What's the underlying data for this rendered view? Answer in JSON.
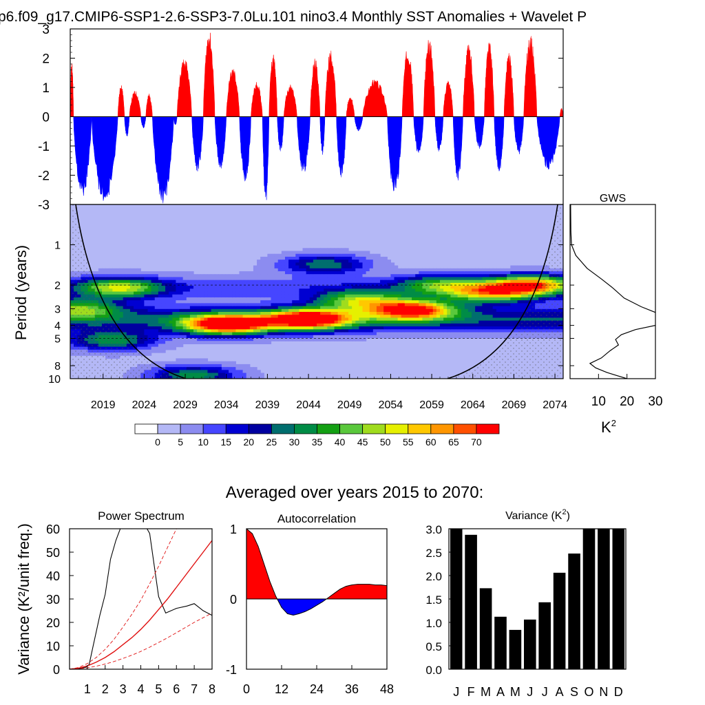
{
  "title": "p6.f09_g17.CMIP6-SSP1-2.6-SSP3-7.0Lu.101 nino3.4 Monthly SST Anomalies + Wavelet P",
  "subtitle": "Averaged over years 2015 to 2070:",
  "colors": {
    "positive": "#ff0000",
    "negative": "#0000ff",
    "coi": "#000000",
    "bars": "#000000"
  },
  "chart_data": [
    {
      "type": "bar",
      "name": "timeseries",
      "ylim": [
        -3,
        3
      ],
      "y_ticks": [
        -3,
        -2,
        -1,
        0,
        1,
        2,
        3
      ],
      "x_range": [
        2015,
        2075
      ],
      "events": [
        {
          "start": 2015.0,
          "end": 2015.4,
          "peak": 1.9
        },
        {
          "start": 2015.4,
          "end": 2017.6,
          "peak": -2.8
        },
        {
          "start": 2017.6,
          "end": 2020.8,
          "peak": -3.0
        },
        {
          "start": 2020.8,
          "end": 2021.6,
          "peak": 1.1
        },
        {
          "start": 2021.6,
          "end": 2022.2,
          "peak": -0.7
        },
        {
          "start": 2022.2,
          "end": 2023.6,
          "peak": 0.9
        },
        {
          "start": 2023.6,
          "end": 2024.2,
          "peak": -0.4
        },
        {
          "start": 2024.2,
          "end": 2025.0,
          "peak": 0.8
        },
        {
          "start": 2025.0,
          "end": 2027.6,
          "peak": -3.0
        },
        {
          "start": 2027.6,
          "end": 2028.0,
          "peak": -0.3
        },
        {
          "start": 2028.0,
          "end": 2029.8,
          "peak": 2.0
        },
        {
          "start": 2029.8,
          "end": 2031.2,
          "peak": -1.9
        },
        {
          "start": 2031.2,
          "end": 2032.6,
          "peak": 3.0
        },
        {
          "start": 2032.6,
          "end": 2034.0,
          "peak": -1.8
        },
        {
          "start": 2034.0,
          "end": 2035.6,
          "peak": 1.7
        },
        {
          "start": 2035.6,
          "end": 2037.0,
          "peak": -2.3
        },
        {
          "start": 2037.0,
          "end": 2038.4,
          "peak": 1.2
        },
        {
          "start": 2038.4,
          "end": 2039.2,
          "peak": -3.0
        },
        {
          "start": 2039.2,
          "end": 2040.2,
          "peak": 2.2
        },
        {
          "start": 2040.2,
          "end": 2041.0,
          "peak": -1.2
        },
        {
          "start": 2041.0,
          "end": 2042.6,
          "peak": 1.1
        },
        {
          "start": 2042.6,
          "end": 2044.2,
          "peak": -2.0
        },
        {
          "start": 2044.2,
          "end": 2045.4,
          "peak": 2.0
        },
        {
          "start": 2045.4,
          "end": 2046.0,
          "peak": -1.3
        },
        {
          "start": 2046.0,
          "end": 2047.4,
          "peak": 2.3
        },
        {
          "start": 2047.4,
          "end": 2048.6,
          "peak": -2.1
        },
        {
          "start": 2048.6,
          "end": 2049.6,
          "peak": 0.7
        },
        {
          "start": 2049.6,
          "end": 2050.6,
          "peak": -0.5
        },
        {
          "start": 2050.6,
          "end": 2053.6,
          "peak": 1.3
        },
        {
          "start": 2053.6,
          "end": 2055.4,
          "peak": -2.7
        },
        {
          "start": 2055.4,
          "end": 2056.8,
          "peak": 2.4
        },
        {
          "start": 2056.8,
          "end": 2058.0,
          "peak": -1.3
        },
        {
          "start": 2058.0,
          "end": 2059.4,
          "peak": 2.7
        },
        {
          "start": 2059.4,
          "end": 2060.4,
          "peak": -1.2
        },
        {
          "start": 2060.4,
          "end": 2061.6,
          "peak": 1.3
        },
        {
          "start": 2061.6,
          "end": 2062.8,
          "peak": -2.2
        },
        {
          "start": 2062.8,
          "end": 2064.2,
          "peak": 2.5
        },
        {
          "start": 2064.2,
          "end": 2065.4,
          "peak": -1.1
        },
        {
          "start": 2065.4,
          "end": 2066.6,
          "peak": 2.6
        },
        {
          "start": 2066.6,
          "end": 2067.8,
          "peak": -1.9
        },
        {
          "start": 2067.8,
          "end": 2069.0,
          "peak": 2.2
        },
        {
          "start": 2069.0,
          "end": 2070.2,
          "peak": -1.3
        },
        {
          "start": 2070.2,
          "end": 2071.8,
          "peak": 2.8
        },
        {
          "start": 2071.8,
          "end": 2074.6,
          "peak": -1.8
        },
        {
          "start": 2074.6,
          "end": 2075.0,
          "peak": 0.3
        }
      ]
    },
    {
      "type": "heatmap",
      "name": "wavelet",
      "ylabel": "Period (years)",
      "y_ticks": [
        1,
        2,
        3,
        4,
        5,
        8,
        10
      ],
      "x_ticks": [
        2019,
        2024,
        2029,
        2034,
        2039,
        2044,
        2049,
        2054,
        2059,
        2064,
        2069,
        2074
      ],
      "period_range": [
        0.5,
        10
      ],
      "x_range": [
        2015,
        2075
      ],
      "colorbar_labels": [
        0,
        5,
        10,
        15,
        20,
        25,
        30,
        35,
        40,
        45,
        50,
        55,
        60,
        65,
        70
      ],
      "colorbar_colors": [
        "#ffffff",
        "#b4b8f6",
        "#8c8cf0",
        "#4646ff",
        "#0000d2",
        "#0000a0",
        "#006e6e",
        "#008c46",
        "#14a014",
        "#5ac83c",
        "#a0dc1e",
        "#e6f000",
        "#ffc800",
        "#ff9600",
        "#ff5000",
        "#ff0000"
      ],
      "blobs": [
        {
          "x": 2034,
          "period": 3.95,
          "power": 72
        },
        {
          "x": 2044,
          "period": 3.6,
          "power": 70
        },
        {
          "x": 2056.5,
          "period": 3.05,
          "power": 66
        },
        {
          "x": 2071,
          "period": 2.0,
          "power": 57
        },
        {
          "x": 2066,
          "period": 2.3,
          "power": 42
        },
        {
          "x": 2021,
          "period": 2.1,
          "power": 40
        },
        {
          "x": 2050,
          "period": 2.6,
          "power": 38
        },
        {
          "x": 2016,
          "period": 3.0,
          "power": 34
        },
        {
          "x": 2060,
          "period": 2.0,
          "power": 30
        },
        {
          "x": 2046,
          "period": 1.4,
          "power": 26
        },
        {
          "x": 2030,
          "period": 9.5,
          "power": 30
        },
        {
          "x": 2020,
          "period": 5.2,
          "power": 30
        }
      ],
      "dashed_periods": [
        2,
        5
      ]
    },
    {
      "type": "line",
      "name": "GWS",
      "title": "GWS",
      "xlabel": "K²",
      "x_ticks": [
        10,
        20,
        30
      ],
      "xlim": [
        0,
        30
      ],
      "period": [
        0.5,
        0.8,
        1.0,
        1.2,
        1.5,
        1.8,
        2.1,
        2.5,
        2.9,
        3.2,
        3.6,
        4.0,
        4.3,
        4.7,
        5.1,
        5.6,
        6.2,
        7.0,
        7.7,
        8.3,
        9.0,
        10.0
      ],
      "power": [
        0.2,
        0.3,
        0.5,
        2.0,
        6.0,
        11.0,
        15.0,
        19.0,
        25.0,
        30.0,
        31.0,
        30.0,
        23.0,
        18.0,
        16.0,
        17.0,
        14.0,
        11.0,
        7.0,
        9.0,
        13.0,
        20.0
      ]
    },
    {
      "type": "line",
      "name": "power_spectrum",
      "title": "Power Spectrum",
      "ylabel": "Variance (K²/unit freq.)",
      "xlim": [
        0,
        8
      ],
      "ylim": [
        0,
        60
      ],
      "x_ticks": [
        1,
        2,
        3,
        4,
        5,
        6,
        7,
        8
      ],
      "y_ticks": [
        0,
        10,
        20,
        30,
        40,
        50,
        60
      ],
      "spectrum_x": [
        0.0,
        0.5,
        0.9,
        1.1,
        1.3,
        1.5,
        1.7,
        2.0,
        2.3,
        2.6,
        2.9,
        3.1,
        3.5,
        4.2,
        4.5,
        5.0,
        5.4,
        6.0,
        6.6,
        7.0,
        7.5,
        8.0
      ],
      "spectrum_y": [
        0,
        0.2,
        0.8,
        2.0,
        9.0,
        16.0,
        23.0,
        32.0,
        47.0,
        55.0,
        61.0,
        62.0,
        60.0,
        62.0,
        58.0,
        31.0,
        24.0,
        26.0,
        27.0,
        28.0,
        25.0,
        23.0
      ],
      "red_noise_x": [
        0,
        0.5,
        1,
        1.5,
        2,
        2.5,
        3,
        3.5,
        4,
        4.5,
        5,
        5.5,
        6,
        6.5,
        7,
        7.5,
        8
      ],
      "red_noise_mean": [
        0,
        0.4,
        1.4,
        3.0,
        5.0,
        7.5,
        10.5,
        13.5,
        17.0,
        21.0,
        25.5,
        30.0,
        35.0,
        40.0,
        45.0,
        50.0,
        55.0
      ],
      "red_noise_upper": [
        0,
        0.7,
        2.4,
        5.0,
        8.5,
        12.8,
        18.0,
        23.5,
        29.5,
        36.5,
        44.0,
        52.0,
        60.0,
        60.0
      ],
      "red_noise_lower": [
        0,
        0.2,
        0.6,
        1.3,
        2.2,
        3.3,
        4.6,
        6.0,
        7.6,
        9.4,
        11.4,
        13.4,
        15.6,
        17.8,
        20.0,
        22.0,
        24.0
      ]
    },
    {
      "type": "area",
      "name": "autocorrelation",
      "title": "Autocorrelation",
      "xlim": [
        0,
        48
      ],
      "ylim": [
        -1,
        1
      ],
      "x_ticks": [
        0,
        12,
        24,
        36,
        48
      ],
      "y_ticks": [
        -1,
        0,
        1
      ],
      "lag": [
        0,
        2,
        4,
        6,
        8,
        10,
        12,
        14,
        16,
        18,
        20,
        22,
        24,
        26,
        28,
        30,
        32,
        34,
        36,
        38,
        40,
        42,
        44,
        46,
        48
      ],
      "values": [
        1.0,
        0.93,
        0.75,
        0.5,
        0.25,
        0.04,
        -0.12,
        -0.21,
        -0.23,
        -0.21,
        -0.18,
        -0.14,
        -0.09,
        -0.04,
        0.02,
        0.08,
        0.14,
        0.18,
        0.2,
        0.21,
        0.21,
        0.21,
        0.2,
        0.2,
        0.19
      ]
    },
    {
      "type": "bar",
      "name": "monthly_variance",
      "title": "Variance (K²)",
      "categories": [
        "J",
        "F",
        "M",
        "A",
        "M",
        "J",
        "J",
        "A",
        "S",
        "O",
        "N",
        "D"
      ],
      "values": [
        3.0,
        2.87,
        1.73,
        1.12,
        0.84,
        1.06,
        1.43,
        2.06,
        2.47,
        3.0,
        3.0,
        3.0
      ],
      "ylim": [
        0,
        3
      ],
      "y_ticks": [
        "0.0",
        "0.5",
        "1.0",
        "1.5",
        "2.0",
        "2.5",
        "3.0"
      ]
    }
  ]
}
